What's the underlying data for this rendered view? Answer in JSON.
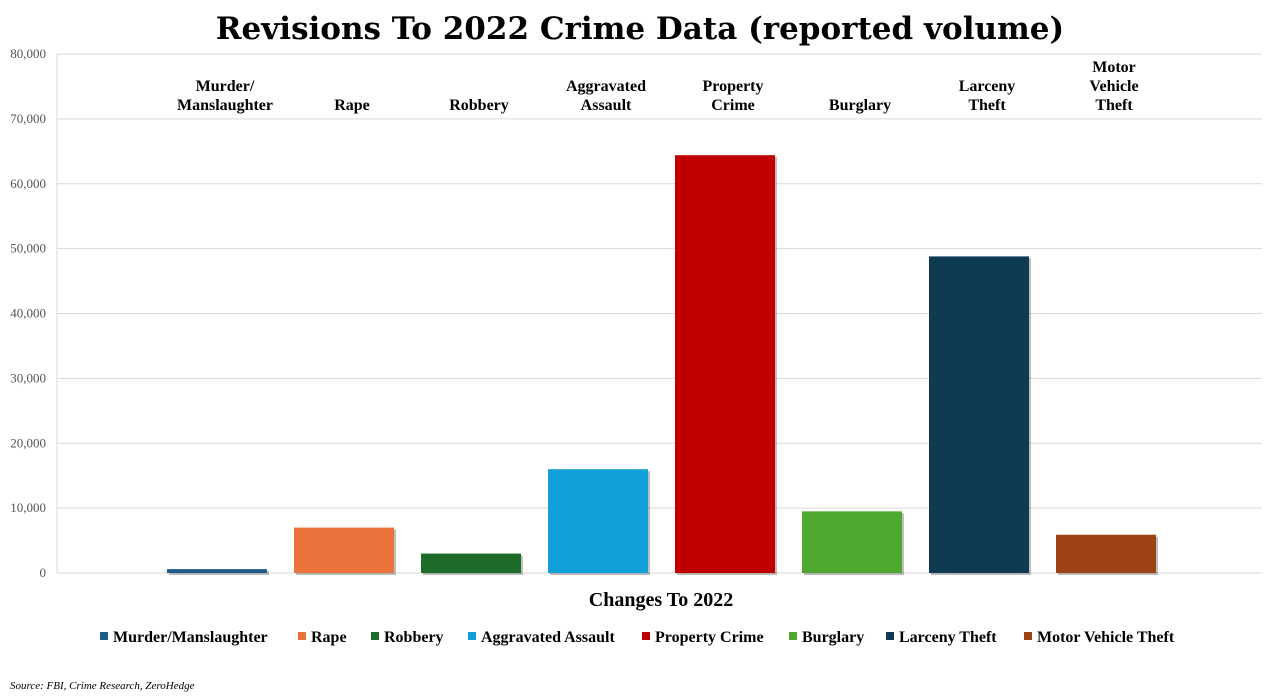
{
  "chart_data": {
    "type": "bar",
    "title": "Revisions To 2022 Crime Data (reported volume)",
    "xlabel": "Changes To 2022",
    "ylabel": "",
    "ylim": [
      0,
      80000
    ],
    "yticks": [
      0,
      10000,
      20000,
      30000,
      40000,
      50000,
      60000,
      70000,
      80000
    ],
    "ytick_labels": [
      "0",
      "10,000",
      "20,000",
      "30,000",
      "40,000",
      "50,000",
      "60,000",
      "70,000",
      "80,000"
    ],
    "grid": true,
    "legend_position": "bottom",
    "series": [
      {
        "name": "Murder/Manslaughter",
        "label_lines": [
          "Murder/",
          "Manslaughter"
        ],
        "value": 600,
        "color": "#1f5c87"
      },
      {
        "name": "Rape",
        "label_lines": [
          "Rape"
        ],
        "value": 7000,
        "color": "#e8743b"
      },
      {
        "name": "Robbery",
        "label_lines": [
          "Robbery"
        ],
        "value": 3000,
        "color": "#1e6b2a"
      },
      {
        "name": "Aggravated Assault",
        "label_lines": [
          "Aggravated",
          "Assault"
        ],
        "value": 16000,
        "color": "#129ed8"
      },
      {
        "name": "Property Crime",
        "label_lines": [
          "Property",
          "Crime"
        ],
        "value": 64400,
        "color": "#c00000"
      },
      {
        "name": "Burglary",
        "label_lines": [
          "Burglary"
        ],
        "value": 9500,
        "color": "#4ea72e"
      },
      {
        "name": "Larceny Theft",
        "label_lines": [
          "Larceny",
          "Theft"
        ],
        "value": 48800,
        "color": "#0e3a52"
      },
      {
        "name": "Motor Vehicle Theft",
        "label_lines": [
          "Motor",
          "Vehicle",
          "Theft"
        ],
        "value": 5900,
        "color": "#9c4215"
      }
    ]
  },
  "source": "Source: FBI, Crime Research, ZeroHedge"
}
